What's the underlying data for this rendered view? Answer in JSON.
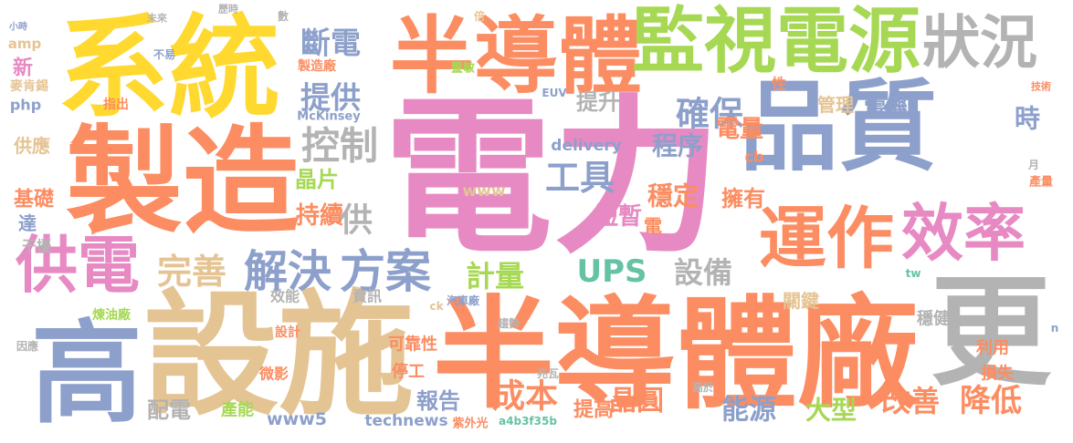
{
  "words": [
    "電力",
    "系統",
    "製造",
    "高",
    "設施",
    "半導體廠",
    "更",
    "品質",
    "半導體",
    "監視電源",
    "狀況",
    "運作",
    "效率",
    "供電",
    "解決",
    "方案",
    "完善",
    "控制",
    "提供",
    "斷電",
    "UPS",
    "設備",
    "計量",
    "工具",
    "確保",
    "提升",
    "程序",
    "穩定",
    "短暫",
    "電量",
    "擁有",
    "管理",
    "電機",
    "時",
    "晶片",
    "持續",
    "供",
    "delivery",
    "www",
    "基礎",
    "供應",
    "達",
    "干擾",
    "新",
    "php",
    "amp",
    "報告",
    "成本",
    "晶圓",
    "提高",
    "能源",
    "大型",
    "改善",
    "降低",
    "配電",
    "www5",
    "產能",
    "technews",
    "紫外光",
    "a4b3f35b",
    "關鍵",
    "可靠性",
    "停工",
    "資訊",
    "效能",
    "利用",
    "損失",
    "穩健",
    "微影",
    "設計",
    "汽車廠",
    "趨勢",
    "McKinsey",
    "EUV",
    "靈敏",
    "製造廠",
    "煉油廠",
    "指出",
    "因應",
    "麥肯錫",
    "小時",
    "歷時",
    "數",
    "未來",
    "不易",
    "tw",
    "產量",
    "技術",
    "兆瓦",
    "高於",
    "性",
    "cb",
    "電",
    "ck",
    "n",
    "倍",
    "月"
  ]
}
